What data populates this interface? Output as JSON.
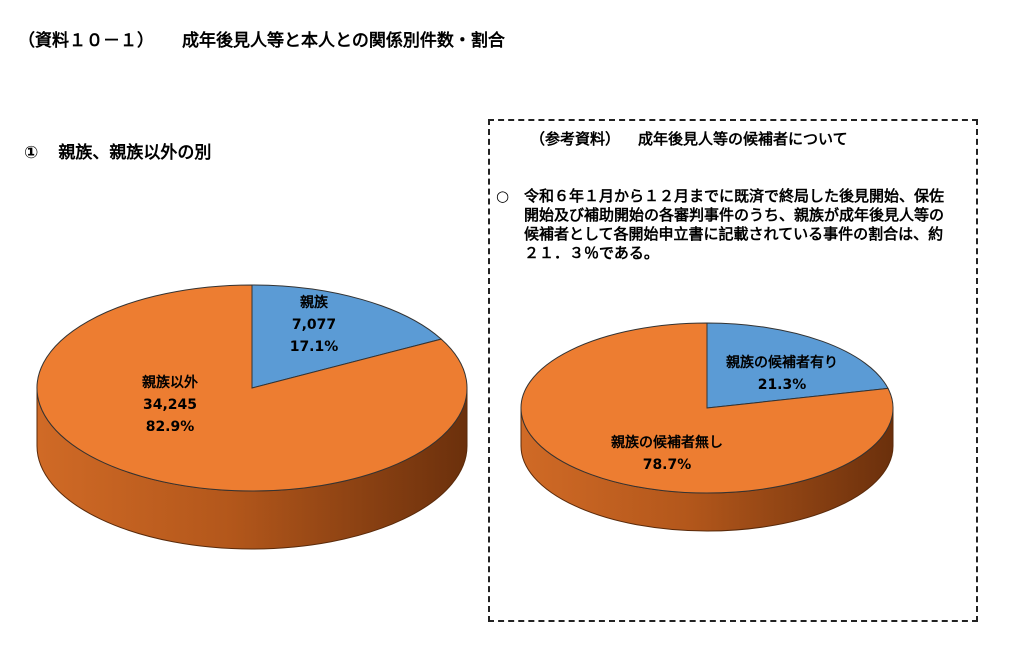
{
  "header": {
    "doc_ref": "（資料１０－１）",
    "title": "成年後見人等と本人との関係別件数・割合"
  },
  "section1": {
    "number": "①",
    "heading": "親族、親族以外の別"
  },
  "reference": {
    "label": "（参考資料）",
    "heading": "成年後見人等の候補者について",
    "bullet": "○",
    "text": "令和６年１月から１２月までに既済で終局した後見開始、保佐開始及び補助開始の各審判事件のうち、親族が成年後見人等の候補者として各開始申立書に記載されている事件の割合は、約２１．３％である。"
  },
  "colors": {
    "blue": "#5b9bd5",
    "orange": "#ed7d31",
    "orange_dark": "#9a4a15",
    "orange_side": "#c45f1e"
  },
  "chart_data": [
    {
      "type": "pie",
      "title": "",
      "slices": [
        {
          "label": "親族",
          "count": "7,077",
          "value": 7077,
          "percent": "17.1%"
        },
        {
          "label": "親族以外",
          "count": "34,245",
          "value": 34245,
          "percent": "82.9%"
        }
      ]
    },
    {
      "type": "pie",
      "title": "",
      "slices": [
        {
          "label": "親族の候補者有り",
          "value": 21.3,
          "percent": "21.3%"
        },
        {
          "label": "親族の候補者無し",
          "value": 78.7,
          "percent": "78.7%"
        }
      ]
    }
  ]
}
